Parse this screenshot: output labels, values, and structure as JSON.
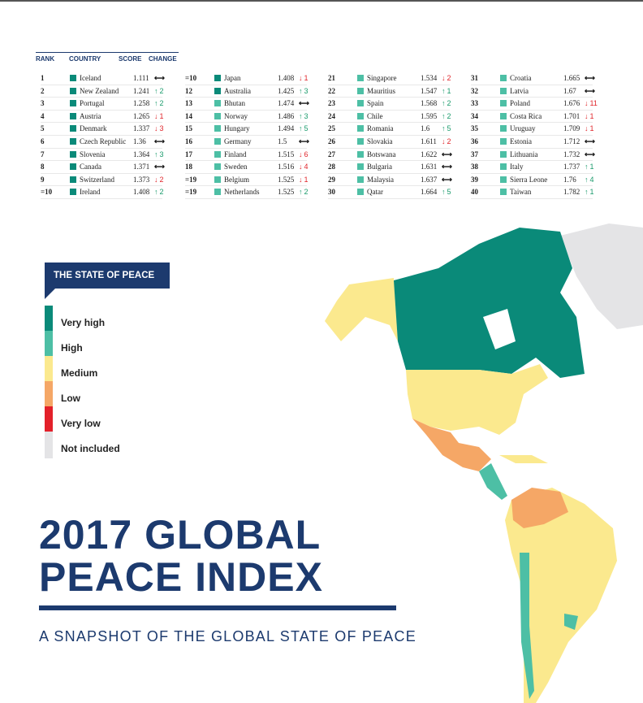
{
  "table": {
    "headers": {
      "rank": "RANK",
      "country": "COUNTRY",
      "score": "SCORE",
      "change": "CHANGE"
    },
    "colors": {
      "very_high": "#0a8a79",
      "high": "#4dbfa5"
    },
    "rows": [
      [
        "1",
        "Iceland",
        "1.111",
        "same",
        "",
        "very_high"
      ],
      [
        "2",
        "New Zealand",
        "1.241",
        "up",
        "2",
        "very_high"
      ],
      [
        "3",
        "Portugal",
        "1.258",
        "up",
        "2",
        "very_high"
      ],
      [
        "4",
        "Austria",
        "1.265",
        "down",
        "1",
        "very_high"
      ],
      [
        "5",
        "Denmark",
        "1.337",
        "down",
        "3",
        "very_high"
      ],
      [
        "6",
        "Czech Republic",
        "1.36",
        "same",
        "",
        "very_high"
      ],
      [
        "7",
        "Slovenia",
        "1.364",
        "up",
        "3",
        "very_high"
      ],
      [
        "8",
        "Canada",
        "1.371",
        "same",
        "",
        "very_high"
      ],
      [
        "9",
        "Switzerland",
        "1.373",
        "down",
        "2",
        "very_high"
      ],
      [
        "=10",
        "Ireland",
        "1.408",
        "up",
        "2",
        "very_high"
      ],
      [
        "=10",
        "Japan",
        "1.408",
        "down",
        "1",
        "very_high"
      ],
      [
        "12",
        "Australia",
        "1.425",
        "up",
        "3",
        "very_high"
      ],
      [
        "13",
        "Bhutan",
        "1.474",
        "same",
        "",
        "high"
      ],
      [
        "14",
        "Norway",
        "1.486",
        "up",
        "3",
        "high"
      ],
      [
        "15",
        "Hungary",
        "1.494",
        "up",
        "5",
        "high"
      ],
      [
        "16",
        "Germany",
        "1.5",
        "same",
        "",
        "high"
      ],
      [
        "17",
        "Finland",
        "1.515",
        "down",
        "6",
        "high"
      ],
      [
        "18",
        "Sweden",
        "1.516",
        "down",
        "4",
        "high"
      ],
      [
        "=19",
        "Belgium",
        "1.525",
        "down",
        "1",
        "high"
      ],
      [
        "=19",
        "Netherlands",
        "1.525",
        "up",
        "2",
        "high"
      ],
      [
        "21",
        "Singapore",
        "1.534",
        "down",
        "2",
        "high"
      ],
      [
        "22",
        "Mauritius",
        "1.547",
        "up",
        "1",
        "high"
      ],
      [
        "23",
        "Spain",
        "1.568",
        "up",
        "2",
        "high"
      ],
      [
        "24",
        "Chile",
        "1.595",
        "up",
        "2",
        "high"
      ],
      [
        "25",
        "Romania",
        "1.6",
        "up",
        "5",
        "high"
      ],
      [
        "26",
        "Slovakia",
        "1.611",
        "down",
        "2",
        "high"
      ],
      [
        "27",
        "Botswana",
        "1.622",
        "same",
        "",
        "high"
      ],
      [
        "28",
        "Bulgaria",
        "1.631",
        "same",
        "",
        "high"
      ],
      [
        "29",
        "Malaysia",
        "1.637",
        "same",
        "",
        "high"
      ],
      [
        "30",
        "Qatar",
        "1.664",
        "up",
        "5",
        "high"
      ],
      [
        "31",
        "Croatia",
        "1.665",
        "same",
        "",
        "high"
      ],
      [
        "32",
        "Latvia",
        "1.67",
        "same",
        "",
        "high"
      ],
      [
        "33",
        "Poland",
        "1.676",
        "down",
        "11",
        "high"
      ],
      [
        "34",
        "Costa Rica",
        "1.701",
        "down",
        "1",
        "high"
      ],
      [
        "35",
        "Uruguay",
        "1.709",
        "down",
        "1",
        "high"
      ],
      [
        "36",
        "Estonia",
        "1.712",
        "same",
        "",
        "high"
      ],
      [
        "37",
        "Lithuania",
        "1.732",
        "same",
        "",
        "high"
      ],
      [
        "38",
        "Italy",
        "1.737",
        "up",
        "1",
        "high"
      ],
      [
        "39",
        "Sierra Leone",
        "1.76",
        "up",
        "4",
        "high"
      ],
      [
        "40",
        "Taiwan",
        "1.782",
        "up",
        "1",
        "high"
      ]
    ]
  },
  "legend": {
    "title": "THE STATE OF PEACE",
    "items": [
      {
        "label": "Very high",
        "color": "#0a8a79"
      },
      {
        "label": "High",
        "color": "#4dbfa5"
      },
      {
        "label": "Medium",
        "color": "#fbe98e"
      },
      {
        "label": "Low",
        "color": "#f5a766"
      },
      {
        "label": "Very low",
        "color": "#e3202a"
      },
      {
        "label": "Not included",
        "color": "#e4e4e6"
      }
    ]
  },
  "title": {
    "line1": "2017 GLOBAL",
    "line2": "PEACE INDEX"
  },
  "subtitle": "A SNAPSHOT OF THE GLOBAL STATE OF PEACE"
}
